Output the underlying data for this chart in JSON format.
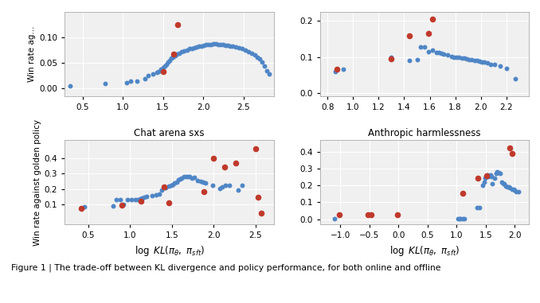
{
  "blue": "#4f86c6",
  "red": "#c0392b",
  "background": "#f0f0f0",
  "top_left": {
    "ylabel": "Win rate ag...",
    "xlim": [
      0.28,
      2.88
    ],
    "ylim": [
      -0.015,
      0.15
    ],
    "yticks": [
      0.0,
      0.05,
      0.1
    ],
    "xticks": [
      0.5,
      1.0,
      1.5,
      2.0,
      2.5
    ],
    "blue_x": [
      0.35,
      0.78,
      1.05,
      1.1,
      1.18,
      1.28,
      1.32,
      1.38,
      1.42,
      1.44,
      1.47,
      1.5,
      1.52,
      1.54,
      1.56,
      1.58,
      1.6,
      1.62,
      1.65,
      1.67,
      1.7,
      1.73,
      1.76,
      1.8,
      1.83,
      1.86,
      1.89,
      1.92,
      1.95,
      1.98,
      2.01,
      2.04,
      2.07,
      2.1,
      2.13,
      2.16,
      2.19,
      2.22,
      2.25,
      2.28,
      2.31,
      2.34,
      2.37,
      2.4,
      2.44,
      2.48,
      2.52,
      2.56,
      2.6,
      2.64,
      2.67,
      2.7,
      2.73,
      2.76,
      2.79,
      2.82
    ],
    "blue_y": [
      0.005,
      0.01,
      0.012,
      0.015,
      0.015,
      0.02,
      0.025,
      0.028,
      0.032,
      0.034,
      0.038,
      0.042,
      0.045,
      0.048,
      0.052,
      0.056,
      0.06,
      0.062,
      0.065,
      0.067,
      0.07,
      0.072,
      0.074,
      0.076,
      0.078,
      0.079,
      0.08,
      0.082,
      0.083,
      0.084,
      0.085,
      0.086,
      0.087,
      0.087,
      0.088,
      0.088,
      0.087,
      0.087,
      0.086,
      0.085,
      0.085,
      0.084,
      0.083,
      0.082,
      0.08,
      0.078,
      0.076,
      0.073,
      0.07,
      0.066,
      0.062,
      0.058,
      0.052,
      0.045,
      0.035,
      0.028
    ],
    "red_x": [
      1.5,
      1.63,
      1.68
    ],
    "red_y": [
      0.033,
      0.068,
      0.125
    ]
  },
  "top_right": {
    "ylabel": "",
    "xlim": [
      0.74,
      2.38
    ],
    "ylim": [
      -0.01,
      0.225
    ],
    "yticks": [
      0.0,
      0.1,
      0.2
    ],
    "xticks": [
      0.8,
      1.0,
      1.2,
      1.4,
      1.6,
      1.8,
      2.0,
      2.2
    ],
    "blue_x": [
      0.86,
      0.92,
      1.3,
      1.44,
      1.5,
      1.53,
      1.56,
      1.59,
      1.62,
      1.65,
      1.67,
      1.69,
      1.71,
      1.74,
      1.77,
      1.79,
      1.81,
      1.83,
      1.85,
      1.87,
      1.89,
      1.91,
      1.93,
      1.95,
      1.97,
      1.99,
      2.01,
      2.03,
      2.05,
      2.08,
      2.11,
      2.15,
      2.2,
      2.27
    ],
    "blue_y": [
      0.058,
      0.065,
      0.1,
      0.09,
      0.093,
      0.128,
      0.128,
      0.115,
      0.12,
      0.112,
      0.112,
      0.11,
      0.108,
      0.105,
      0.102,
      0.1,
      0.1,
      0.098,
      0.097,
      0.096,
      0.095,
      0.093,
      0.092,
      0.09,
      0.089,
      0.088,
      0.086,
      0.085,
      0.083,
      0.08,
      0.078,
      0.075,
      0.068,
      0.04
    ],
    "red_x": [
      0.87,
      1.3,
      1.44,
      1.59,
      1.62
    ],
    "red_y": [
      0.065,
      0.095,
      0.16,
      0.165,
      0.205
    ]
  },
  "bottom_left": {
    "title": "Chat arena sxs",
    "ylabel": "Win rate against golden policy",
    "xlim": [
      0.22,
      2.72
    ],
    "ylim": [
      -0.03,
      0.52
    ],
    "yticks": [
      0.1,
      0.2,
      0.3,
      0.4
    ],
    "xticks": [
      0.5,
      1.0,
      1.5,
      2.0,
      2.5
    ],
    "blue_x": [
      0.45,
      0.8,
      0.84,
      0.88,
      0.92,
      0.97,
      1.02,
      1.06,
      1.09,
      1.12,
      1.14,
      1.17,
      1.2,
      1.26,
      1.31,
      1.35,
      1.38,
      1.41,
      1.43,
      1.46,
      1.49,
      1.51,
      1.53,
      1.56,
      1.58,
      1.6,
      1.62,
      1.64,
      1.67,
      1.69,
      1.71,
      1.74,
      1.77,
      1.81,
      1.84,
      1.87,
      1.9,
      1.99,
      2.07,
      2.1,
      2.14,
      2.19,
      2.29,
      2.34
    ],
    "blue_y": [
      0.085,
      0.09,
      0.133,
      0.133,
      0.1,
      0.133,
      0.133,
      0.133,
      0.133,
      0.136,
      0.14,
      0.145,
      0.15,
      0.156,
      0.16,
      0.166,
      0.192,
      0.21,
      0.207,
      0.218,
      0.222,
      0.228,
      0.242,
      0.247,
      0.262,
      0.267,
      0.272,
      0.281,
      0.281,
      0.282,
      0.283,
      0.272,
      0.277,
      0.257,
      0.252,
      0.247,
      0.242,
      0.222,
      0.202,
      0.212,
      0.222,
      0.222,
      0.192,
      0.222
    ],
    "red_x": [
      0.42,
      0.9,
      1.13,
      1.41,
      1.46,
      1.88,
      2.0,
      2.13,
      2.26,
      2.5,
      2.53,
      2.57
    ],
    "red_y": [
      0.072,
      0.097,
      0.118,
      0.212,
      0.112,
      0.182,
      0.4,
      0.345,
      0.372,
      0.463,
      0.148,
      0.04
    ]
  },
  "bottom_right": {
    "title": "Anthropic harmlessness",
    "ylabel": "",
    "xlim": [
      -1.35,
      2.25
    ],
    "ylim": [
      -0.03,
      0.47
    ],
    "yticks": [
      0.0,
      0.1,
      0.2,
      0.3,
      0.4
    ],
    "xticks": [
      -1.0,
      -0.5,
      0.0,
      0.5,
      1.0,
      1.5,
      2.0
    ],
    "blue_x": [
      -1.1,
      1.02,
      1.05,
      1.07,
      1.1,
      1.13,
      1.35,
      1.4,
      1.45,
      1.47,
      1.49,
      1.51,
      1.53,
      1.55,
      1.58,
      1.6,
      1.62,
      1.65,
      1.68,
      1.7,
      1.72,
      1.75,
      1.78,
      1.8,
      1.82,
      1.85,
      1.88,
      1.9,
      1.92,
      1.95,
      1.98,
      2.0,
      2.03,
      2.06
    ],
    "blue_y": [
      0.002,
      0.002,
      0.002,
      0.002,
      0.002,
      0.002,
      0.068,
      0.068,
      0.2,
      0.222,
      0.242,
      0.252,
      0.262,
      0.252,
      0.263,
      0.252,
      0.212,
      0.242,
      0.272,
      0.282,
      0.278,
      0.272,
      0.222,
      0.212,
      0.212,
      0.197,
      0.192,
      0.192,
      0.187,
      0.177,
      0.177,
      0.172,
      0.162,
      0.162
    ],
    "red_x": [
      -1.02,
      -0.52,
      -0.47,
      -0.02,
      1.1,
      1.36,
      1.52,
      1.92,
      1.96
    ],
    "red_y": [
      0.025,
      0.025,
      0.025,
      0.025,
      0.155,
      0.242,
      0.258,
      0.422,
      0.388
    ]
  },
  "caption": "Figure 1 | The trade-off between KL divergence and policy performance, for both online and offline",
  "figsize": [
    6.78,
    3.81
  ],
  "dpi": 100
}
